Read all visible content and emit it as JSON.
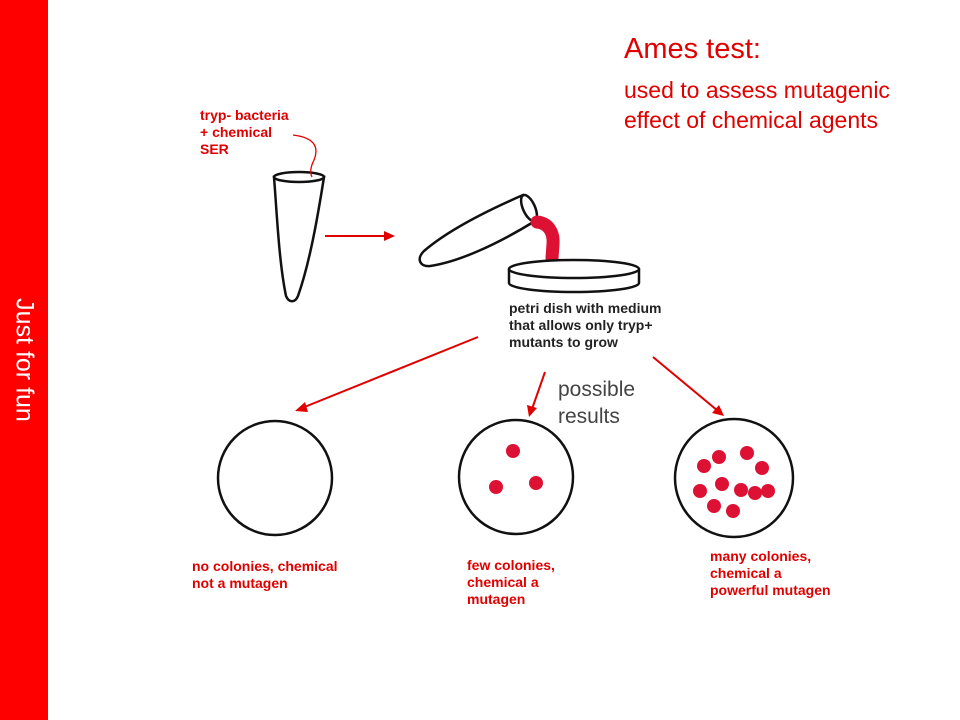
{
  "sidebar": {
    "label": "Just for fun"
  },
  "header": {
    "title": "Ames test:",
    "subtitle_line1": "used to assess mutagenic",
    "subtitle_line2": "effect of chemical agents"
  },
  "tube_label": {
    "line1": "tryp- bacteria",
    "line2": "+ chemical",
    "line3": "SER"
  },
  "dish_label": {
    "line1": "petri dish with medium",
    "line2": "that allows only tryp+",
    "line3": "mutants to grow"
  },
  "possible_results": {
    "line1": "possible",
    "line2": "results"
  },
  "results": [
    {
      "line1": "no colonies, chemical",
      "line2": "not a mutagen"
    },
    {
      "line1": "few colonies,",
      "line2": "chemical a",
      "line3": "mutagen"
    },
    {
      "line1": "many colonies,",
      "line2": "chemical a",
      "line3": "powerful mutagen"
    }
  ],
  "colors": {
    "accent": "#ff0000",
    "label_red": "#e00000",
    "colony": "#dd1133",
    "outline": "#111111"
  }
}
